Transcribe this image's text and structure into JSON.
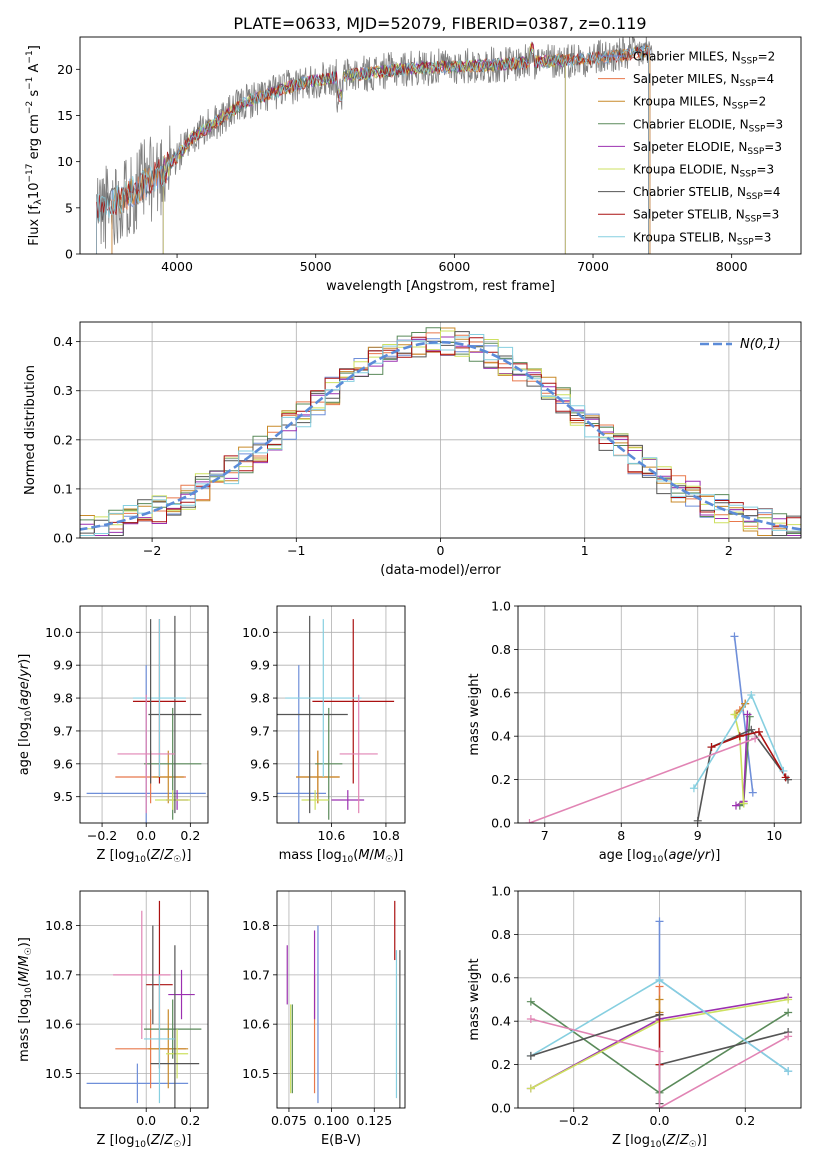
{
  "title": "PLATE=0633, MJD=52079, FIBERID=0387, z=0.119",
  "colors": {
    "Chabrier MILES": "#6f8fd9",
    "Salpeter MILES": "#e8784c",
    "Kroupa MILES": "#c88a2a",
    "Chabrier ELODIE": "#5a8a5a",
    "Salpeter ELODIE": "#9b30b0",
    "Kroupa ELODIE": "#cde060",
    "Chabrier STELIB": "#555555",
    "Salpeter STELIB": "#aa1111",
    "Kroupa STELIB": "#86cfe0",
    "extra_pink": "#e184b4",
    "gauss": "#5b8bd8"
  },
  "chart_data": [
    {
      "id": "spectrum",
      "type": "line",
      "xlabel": "wavelength [Angstrom, rest frame]",
      "ylabel": "Flux [f_λ10^-17 erg cm^-2 s^-1 A^-1]",
      "xlim": [
        3300,
        8500
      ],
      "ylim": [
        0,
        23.5
      ],
      "xticks": [
        4000,
        5000,
        6000,
        7000,
        8000
      ],
      "yticks": [
        0,
        5,
        10,
        15,
        20
      ],
      "grid": false,
      "legend_position": "top-right",
      "legend": [
        {
          "model": "Chabrier MILES",
          "nssp": "2"
        },
        {
          "model": "Salpeter MILES",
          "nssp": "4"
        },
        {
          "model": "Kroupa MILES",
          "nssp": "2"
        },
        {
          "model": "Chabrier ELODIE",
          "nssp": "3"
        },
        {
          "model": "Salpeter ELODIE",
          "nssp": "3"
        },
        {
          "model": "Kroupa ELODIE",
          "nssp": "3"
        },
        {
          "model": "Chabrier STELIB",
          "nssp": "4"
        },
        {
          "model": "Salpeter STELIB",
          "nssp": "3"
        },
        {
          "model": "Kroupa STELIB",
          "nssp": "3"
        }
      ],
      "data_envelope": {
        "x": [
          3420,
          3500,
          3600,
          3700,
          3800,
          3900,
          4000,
          4100,
          4200,
          4300,
          4400,
          4500,
          4600,
          4700,
          4800,
          4900,
          5000,
          5200,
          5400,
          5600,
          5800,
          6000,
          6200,
          6400,
          6600,
          6800,
          7000,
          7200,
          7400
        ],
        "y": [
          5.0,
          5.3,
          6.0,
          7.0,
          8.0,
          9.0,
          10.5,
          12.5,
          13.5,
          14.5,
          15.5,
          16.5,
          17.0,
          17.5,
          18.0,
          18.5,
          18.8,
          19.3,
          19.6,
          20.0,
          20.2,
          20.3,
          20.4,
          20.6,
          20.8,
          21.0,
          21.2,
          21.5,
          22.0
        ]
      },
      "model_ends": [
        {
          "series": "Chabrier MILES",
          "start": 3530,
          "end": 7410
        },
        {
          "series": "Salpeter MILES",
          "start": 3530,
          "end": 7410
        },
        {
          "series": "Kroupa MILES",
          "start": 3530,
          "end": 7410
        },
        {
          "series": "Chabrier ELODIE",
          "start": 3900,
          "end": 6800
        },
        {
          "series": "Salpeter ELODIE",
          "start": 3900,
          "end": 6800
        },
        {
          "series": "Kroupa ELODIE",
          "start": 3900,
          "end": 6800
        },
        {
          "series": "Chabrier STELIB",
          "start": 3420,
          "end": 7400
        },
        {
          "series": "Salpeter STELIB",
          "start": 3420,
          "end": 7400
        },
        {
          "series": "Kroupa STELIB",
          "start": 3420,
          "end": 7400
        }
      ]
    },
    {
      "id": "residuals",
      "type": "histogram",
      "xlabel": "(data-model)/error",
      "ylabel": "Normed distribution",
      "xlim": [
        -2.5,
        2.5
      ],
      "ylim": [
        0,
        0.44
      ],
      "xticks": [
        -2,
        -1,
        0,
        1,
        2
      ],
      "yticks": [
        0.0,
        0.1,
        0.2,
        0.3,
        0.4
      ],
      "grid": true,
      "legend_position": "top-right",
      "legend_label": "N(0,1)",
      "bin_width": 0.1
    },
    {
      "id": "age_vs_z",
      "type": "errorbar",
      "xlabel": "Z [log10(Z/Z☉)]",
      "ylabel": "age [log10(age/yr)]",
      "xlim": [
        -0.3,
        0.28
      ],
      "ylim": [
        9.42,
        10.08
      ],
      "xticks": [
        -0.2,
        0.0,
        0.2
      ],
      "yticks": [
        9.5,
        9.6,
        9.7,
        9.8,
        9.9,
        10.0
      ],
      "grid": true,
      "points": [
        {
          "series": "Chabrier MILES",
          "x": 0.0,
          "xerr": 0.27,
          "y": 9.51,
          "yerr": 0.39
        },
        {
          "series": "Salpeter MILES",
          "x": 0.02,
          "xerr": 0.16,
          "y": 9.56,
          "yerr": 0.08
        },
        {
          "series": "Kroupa MILES",
          "x": 0.1,
          "xerr": 0.07,
          "y": 9.56,
          "yerr": 0.08
        },
        {
          "series": "Chabrier ELODIE",
          "x": 0.12,
          "xerr": 0.13,
          "y": 9.6,
          "yerr": 0.17
        },
        {
          "series": "Salpeter ELODIE",
          "x": 0.14,
          "xerr": 0.05,
          "y": 9.49,
          "yerr": 0.03
        },
        {
          "series": "Kroupa ELODIE",
          "x": 0.12,
          "xerr": 0.08,
          "y": 9.49,
          "yerr": 0.03
        },
        {
          "series": "Chabrier STELIB",
          "x": 0.13,
          "xerr": 0.12,
          "y": 9.75,
          "yerr": 0.3
        },
        {
          "series": "Salpeter STELIB",
          "x": 0.06,
          "xerr": 0.12,
          "y": 9.79,
          "yerr": 0.25
        },
        {
          "series": "Kroupa STELIB",
          "x": 0.06,
          "xerr": 0.12,
          "y": 9.8,
          "yerr": 0.24
        },
        {
          "series": "extra_pink",
          "x": 0.0,
          "xerr": 0.13,
          "y": 9.63,
          "yerr": 0.18
        },
        {
          "series": "Chabrier STELIB",
          "x": 0.02,
          "xerr": 0.0,
          "y": 9.79,
          "yerr": 0.25
        }
      ]
    },
    {
      "id": "age_vs_mass",
      "type": "errorbar",
      "xlabel": "mass [log10(M/M☉)]",
      "ylabel": "",
      "xlim": [
        10.4,
        10.87
      ],
      "ylim": [
        9.42,
        10.08
      ],
      "xticks": [
        10.6,
        10.8
      ],
      "yticks": [
        9.5,
        9.6,
        9.7,
        9.8,
        9.9,
        10.0
      ],
      "grid": true,
      "points": [
        {
          "series": "Chabrier MILES",
          "x": 10.48,
          "xerr": 0.1,
          "y": 9.51,
          "yerr": 0.39
        },
        {
          "series": "Salpeter MILES",
          "x": 10.55,
          "xerr": 0.08,
          "y": 9.56,
          "yerr": 0.08
        },
        {
          "series": "Kroupa MILES",
          "x": 10.55,
          "xerr": 0.08,
          "y": 9.56,
          "yerr": 0.08
        },
        {
          "series": "Chabrier ELODIE",
          "x": 10.59,
          "xerr": 0.05,
          "y": 9.6,
          "yerr": 0.17
        },
        {
          "series": "Salpeter ELODIE",
          "x": 10.66,
          "xerr": 0.06,
          "y": 9.49,
          "yerr": 0.03
        },
        {
          "series": "Kroupa ELODIE",
          "x": 10.54,
          "xerr": 0.05,
          "y": 9.49,
          "yerr": 0.03
        },
        {
          "series": "Chabrier STELIB",
          "x": 10.52,
          "xerr": 0.14,
          "y": 9.75,
          "yerr": 0.3
        },
        {
          "series": "Salpeter STELIB",
          "x": 10.68,
          "xerr": 0.15,
          "y": 9.79,
          "yerr": 0.25
        },
        {
          "series": "Kroupa STELIB",
          "x": 10.57,
          "xerr": 0.14,
          "y": 9.8,
          "yerr": 0.24
        },
        {
          "series": "extra_pink",
          "x": 10.7,
          "xerr": 0.07,
          "y": 9.63,
          "yerr": 0.18
        }
      ]
    },
    {
      "id": "mass_weight_vs_age",
      "type": "line",
      "xlabel": "age [log10(age/yr)]",
      "ylabel": "mass weight",
      "xlim": [
        6.65,
        10.35
      ],
      "ylim": [
        0,
        1.0
      ],
      "xticks": [
        7,
        8,
        9,
        10
      ],
      "yticks": [
        0.0,
        0.2,
        0.4,
        0.6,
        0.8,
        1.0
      ],
      "grid": true,
      "series": [
        {
          "name": "Chabrier MILES",
          "x": [
            9.48,
            9.72
          ],
          "y": [
            0.86,
            0.14
          ]
        },
        {
          "name": "Salpeter MILES",
          "x": [
            9.55,
            9.62
          ],
          "y": [
            0.52,
            0.55
          ]
        },
        {
          "name": "Kroupa MILES",
          "x": [
            9.5,
            9.62
          ],
          "y": [
            0.5,
            0.55
          ]
        },
        {
          "name": "Chabrier ELODIE",
          "x": [
            9.55,
            9.6,
            9.68
          ],
          "y": [
            0.08,
            0.09,
            0.49
          ]
        },
        {
          "name": "Salpeter ELODIE",
          "x": [
            9.5,
            9.6,
            9.65
          ],
          "y": [
            0.08,
            0.1,
            0.5
          ]
        },
        {
          "name": "Kroupa ELODIE",
          "x": [
            9.48,
            9.55,
            9.6
          ],
          "y": [
            0.5,
            0.4,
            0.09
          ]
        },
        {
          "name": "Chabrier STELIB",
          "x": [
            9.0,
            9.18,
            9.7,
            10.18
          ],
          "y": [
            0.01,
            0.35,
            0.43,
            0.2
          ]
        },
        {
          "name": "Salpeter STELIB",
          "x": [
            9.18,
            9.55,
            9.8,
            10.15
          ],
          "y": [
            0.35,
            0.4,
            0.42,
            0.21
          ]
        },
        {
          "name": "Kroupa STELIB",
          "x": [
            8.95,
            9.7,
            10.12
          ],
          "y": [
            0.16,
            0.59,
            0.24
          ]
        },
        {
          "name": "extra_pink",
          "x": [
            6.8,
            9.75
          ],
          "y": [
            0.0,
            0.39
          ]
        }
      ]
    },
    {
      "id": "mass_vs_z",
      "type": "errorbar",
      "xlabel": "Z [log10(Z/Z☉)]",
      "ylabel": "mass [log10(M/M☉)]",
      "xlim": [
        -0.3,
        0.28
      ],
      "ylim": [
        10.43,
        10.87
      ],
      "xticks": [
        0.0,
        0.2
      ],
      "yticks": [
        10.5,
        10.6,
        10.7,
        10.8
      ],
      "grid": true,
      "points": [
        {
          "series": "Chabrier MILES",
          "x": -0.04,
          "xerr": 0.23,
          "y": 10.48,
          "yerr": 0.04
        },
        {
          "series": "Salpeter MILES",
          "x": 0.02,
          "xerr": 0.16,
          "y": 10.55,
          "yerr": 0.08
        },
        {
          "series": "Kroupa MILES",
          "x": 0.1,
          "xerr": 0.09,
          "y": 10.55,
          "yerr": 0.08
        },
        {
          "series": "Chabrier ELODIE",
          "x": 0.12,
          "xerr": 0.13,
          "y": 10.59,
          "yerr": 0.06
        },
        {
          "series": "Salpeter ELODIE",
          "x": 0.16,
          "xerr": 0.06,
          "y": 10.66,
          "yerr": 0.05
        },
        {
          "series": "Kroupa ELODIE",
          "x": 0.14,
          "xerr": 0.05,
          "y": 10.54,
          "yerr": 0.05
        },
        {
          "series": "Chabrier STELIB",
          "x": 0.13,
          "xerr": 0.11,
          "y": 10.52,
          "yerr": 0.24
        },
        {
          "series": "Salpeter STELIB",
          "x": 0.06,
          "xerr": 0.06,
          "y": 10.68,
          "yerr": 0.17
        },
        {
          "series": "Kroupa STELIB",
          "x": 0.06,
          "xerr": 0.07,
          "y": 10.57,
          "yerr": 0.13
        },
        {
          "series": "extra_pink",
          "x": -0.02,
          "xerr": 0.13,
          "y": 10.7,
          "yerr": 0.13
        },
        {
          "series": "Chabrier STELIB",
          "x": 0.03,
          "xerr": 0.0,
          "y": 10.7,
          "yerr": 0.1
        }
      ]
    },
    {
      "id": "mass_vs_ebv",
      "type": "errorbar",
      "xlabel": "E(B-V)",
      "ylabel": "",
      "xlim": [
        0.068,
        0.143
      ],
      "ylim": [
        10.43,
        10.87
      ],
      "xticks": [
        0.075,
        0.1,
        0.125
      ],
      "yticks": [
        10.5,
        10.6,
        10.7,
        10.8
      ],
      "grid": true,
      "points": [
        {
          "series": "Salpeter ELODIE",
          "x": 0.074,
          "y": 10.7,
          "yerr": 0.06
        },
        {
          "series": "Kroupa ELODIE",
          "x": 0.076,
          "y": 10.55,
          "yerr": 0.09
        },
        {
          "series": "Chabrier ELODIE",
          "x": 0.077,
          "y": 10.55,
          "yerr": 0.09
        },
        {
          "series": "Salpeter MILES",
          "x": 0.09,
          "y": 10.58,
          "yerr": 0.12
        },
        {
          "series": "Salpeter ELODIE",
          "x": 0.09,
          "y": 10.7,
          "yerr": 0.09
        },
        {
          "series": "Chabrier MILES",
          "x": 0.092,
          "y": 10.62,
          "yerr": 0.18
        },
        {
          "series": "Salpeter STELIB",
          "x": 0.137,
          "y": 10.79,
          "yerr": 0.06
        },
        {
          "series": "Kroupa STELIB",
          "x": 0.138,
          "y": 10.6,
          "yerr": 0.15
        },
        {
          "series": "Chabrier STELIB",
          "x": 0.14,
          "y": 10.59,
          "yerr": 0.16
        }
      ]
    },
    {
      "id": "mass_weight_vs_z",
      "type": "line",
      "xlabel": "Z [log10(Z/Z☉)]",
      "ylabel": "mass weight",
      "xlim": [
        -0.33,
        0.33
      ],
      "ylim": [
        0,
        1.0
      ],
      "xticks": [
        -0.2,
        0.0,
        0.2
      ],
      "yticks": [
        0.0,
        0.2,
        0.4,
        0.6,
        0.8,
        1.0
      ],
      "grid": true,
      "series": [
        {
          "name": "Chabrier MILES",
          "x": [
            0.0,
            0.0,
            0.3
          ],
          "y": [
            0.86,
            0.59,
            0.17
          ]
        },
        {
          "name": "Salpeter MILES",
          "x": [
            0.0,
            0.0
          ],
          "y": [
            0.56,
            0.43
          ]
        },
        {
          "name": "Kroupa MILES",
          "x": [
            0.0,
            0.0
          ],
          "y": [
            0.44,
            0.5
          ]
        },
        {
          "name": "Chabrier ELODIE",
          "x": [
            -0.3,
            0.0,
            0.3
          ],
          "y": [
            0.49,
            0.07,
            0.44
          ]
        },
        {
          "name": "Salpeter ELODIE",
          "x": [
            -0.3,
            0.0,
            0.3
          ],
          "y": [
            0.09,
            0.41,
            0.51
          ]
        },
        {
          "name": "Kroupa ELODIE",
          "x": [
            -0.3,
            0.0,
            0.3
          ],
          "y": [
            0.09,
            0.4,
            0.5
          ]
        },
        {
          "name": "Chabrier STELIB",
          "x": [
            0.0,
            0.0,
            0.3
          ],
          "y": [
            0.02,
            0.2,
            0.35
          ]
        },
        {
          "name": "Salpeter STELIB",
          "x": [
            0.0,
            0.0
          ],
          "y": [
            0.43,
            0.2
          ]
        },
        {
          "name": "Kroupa STELIB",
          "x": [
            -0.3,
            0.0,
            0.3
          ],
          "y": [
            0.24,
            0.59,
            0.17
          ]
        },
        {
          "name": "extra_pink",
          "x": [
            -0.3,
            0.0,
            0.0,
            0.3
          ],
          "y": [
            0.41,
            0.26,
            0.0,
            0.33
          ]
        },
        {
          "name": "Chabrier STELIB",
          "x": [
            -0.3,
            0.0
          ],
          "y": [
            0.24,
            0.43
          ]
        }
      ]
    }
  ]
}
